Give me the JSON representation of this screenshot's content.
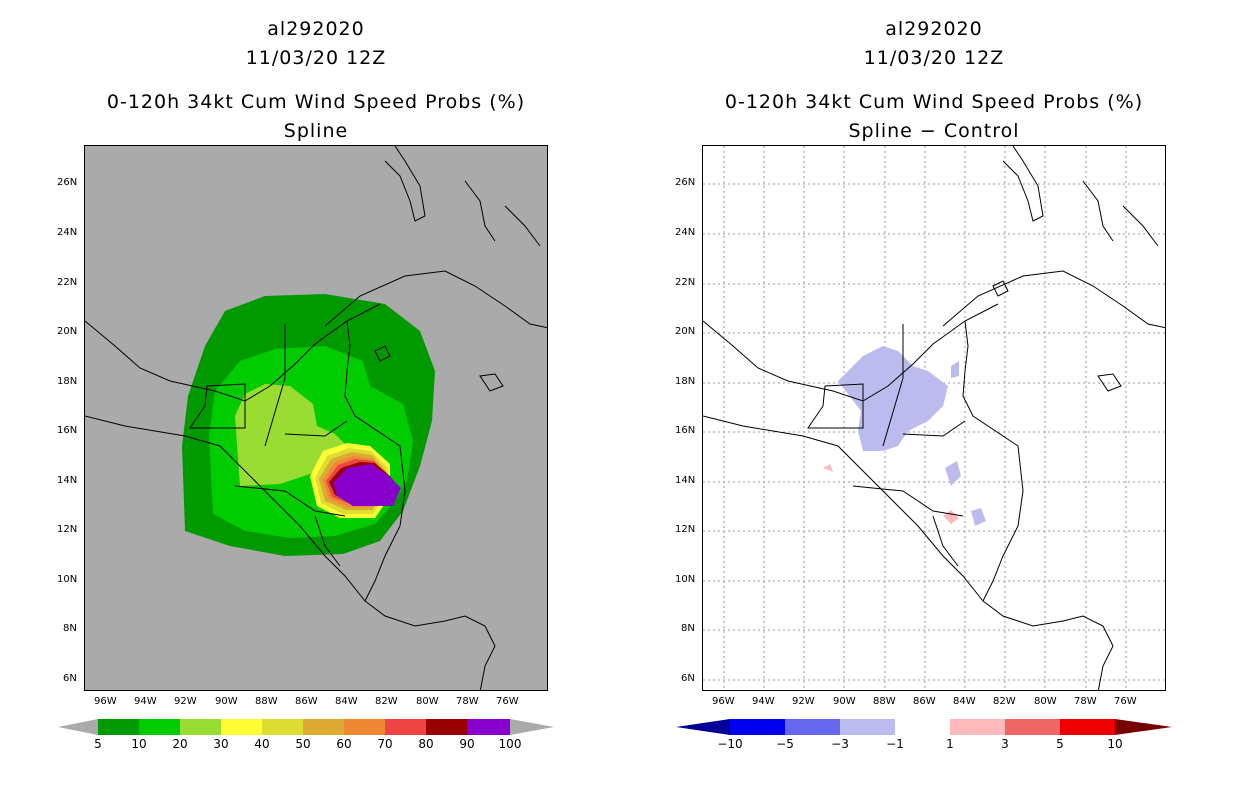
{
  "left": {
    "storm_id": "al292020",
    "datetime": "11/03/20 12Z",
    "title": "0-120h 34kt Cum Wind Speed Probs (%)",
    "subtitle": "Spline",
    "background_color": "#aaaaaa",
    "colorbar": {
      "labels": [
        "5",
        "10",
        "20",
        "30",
        "40",
        "50",
        "60",
        "70",
        "80",
        "90",
        "100"
      ],
      "colors": [
        "#009900",
        "#00cc00",
        "#99dd33",
        "#ffff33",
        "#dddd33",
        "#ddaa33",
        "#ee8833",
        "#ee4444",
        "#990000",
        "#8800cc"
      ]
    }
  },
  "right": {
    "storm_id": "al292020",
    "datetime": "11/03/20 12Z",
    "title": "0-120h 34kt Cum Wind Speed Probs (%)",
    "subtitle": "Spline − Control",
    "background_color": "#ffffff",
    "colorbar": {
      "labels": [
        "−10",
        "−5",
        "−3",
        "−1",
        "1",
        "3",
        "5",
        "10"
      ],
      "colors": [
        "#0000ee",
        "#6666ee",
        "#bbbbee",
        "#ffffff",
        "#ffbbbb",
        "#ee6666",
        "#ee0000"
      ],
      "end_colors": [
        "#000099",
        "#770000"
      ]
    }
  },
  "axes": {
    "lon_labels": [
      "96W",
      "94W",
      "92W",
      "90W",
      "88W",
      "86W",
      "84W",
      "82W",
      "80W",
      "78W",
      "76W"
    ],
    "lat_labels": [
      "26N",
      "24N",
      "22N",
      "20N",
      "18N",
      "16N",
      "14N",
      "12N",
      "10N",
      "8N",
      "6N"
    ]
  }
}
